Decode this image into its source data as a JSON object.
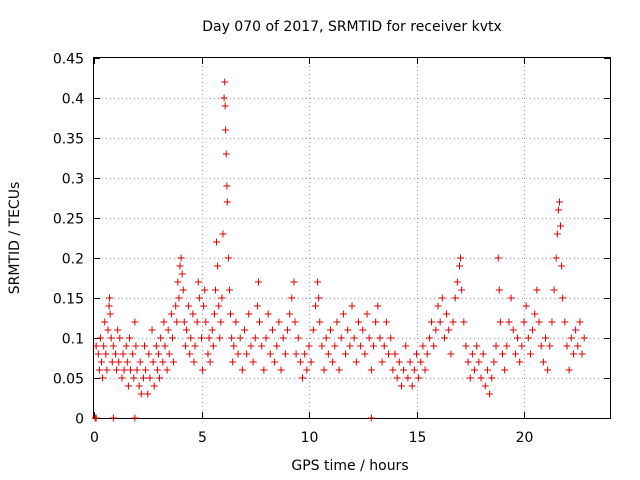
{
  "chart_data": {
    "type": "scatter",
    "title": "Day 070 of 2017, SRMTID for receiver kvtx",
    "xlabel": "GPS time / hours",
    "ylabel": "SRMTID / TECUs",
    "xlim": [
      0,
      24
    ],
    "ylim": [
      0,
      0.45
    ],
    "xticks": [
      0,
      5,
      10,
      15,
      20
    ],
    "xtick_labels": [
      "0",
      "5",
      "10",
      "15",
      "20"
    ],
    "yticks": [
      0,
      0.05,
      0.1,
      0.15,
      0.2,
      0.25,
      0.3,
      0.35,
      0.4,
      0.45
    ],
    "ytick_labels": [
      "0",
      "0.05",
      "0.1",
      "0.15",
      "0.2",
      "0.25",
      "0.3",
      "0.35",
      "0.4",
      "0.45"
    ],
    "grid": true,
    "marker": "+",
    "color": "#e00000",
    "series": [
      {
        "name": "SRMTID",
        "points": [
          [
            0.05,
            0.0
          ],
          [
            0.1,
            0.0
          ],
          [
            0.9,
            0.0
          ],
          [
            1.9,
            0.0
          ],
          [
            12.9,
            0.0
          ],
          [
            0.1,
            0.09
          ],
          [
            0.2,
            0.08
          ],
          [
            0.25,
            0.06
          ],
          [
            0.3,
            0.1
          ],
          [
            0.35,
            0.07
          ],
          [
            0.4,
            0.05
          ],
          [
            0.45,
            0.09
          ],
          [
            0.5,
            0.12
          ],
          [
            0.55,
            0.08
          ],
          [
            0.6,
            0.06
          ],
          [
            0.65,
            0.11
          ],
          [
            0.7,
            0.14
          ],
          [
            0.72,
            0.15
          ],
          [
            0.75,
            0.13
          ],
          [
            0.8,
            0.1
          ],
          [
            0.85,
            0.07
          ],
          [
            0.9,
            0.09
          ],
          [
            1.0,
            0.08
          ],
          [
            1.05,
            0.06
          ],
          [
            1.1,
            0.11
          ],
          [
            1.15,
            0.07
          ],
          [
            1.2,
            0.1
          ],
          [
            1.3,
            0.05
          ],
          [
            1.35,
            0.08
          ],
          [
            1.4,
            0.06
          ],
          [
            1.5,
            0.09
          ],
          [
            1.55,
            0.07
          ],
          [
            1.6,
            0.04
          ],
          [
            1.65,
            0.1
          ],
          [
            1.7,
            0.06
          ],
          [
            1.8,
            0.08
          ],
          [
            1.85,
            0.05
          ],
          [
            1.9,
            0.12
          ],
          [
            1.95,
            0.09
          ],
          [
            2.0,
            0.06
          ],
          [
            2.1,
            0.04
          ],
          [
            2.15,
            0.07
          ],
          [
            2.2,
            0.03
          ],
          [
            2.3,
            0.05
          ],
          [
            2.35,
            0.09
          ],
          [
            2.4,
            0.06
          ],
          [
            2.5,
            0.03
          ],
          [
            2.55,
            0.08
          ],
          [
            2.6,
            0.05
          ],
          [
            2.7,
            0.11
          ],
          [
            2.75,
            0.07
          ],
          [
            2.8,
            0.04
          ],
          [
            2.9,
            0.09
          ],
          [
            2.95,
            0.06
          ],
          [
            3.0,
            0.08
          ],
          [
            3.05,
            0.05
          ],
          [
            3.1,
            0.1
          ],
          [
            3.2,
            0.07
          ],
          [
            3.25,
            0.12
          ],
          [
            3.3,
            0.09
          ],
          [
            3.4,
            0.06
          ],
          [
            3.45,
            0.11
          ],
          [
            3.5,
            0.08
          ],
          [
            3.6,
            0.13
          ],
          [
            3.65,
            0.1
          ],
          [
            3.7,
            0.07
          ],
          [
            3.8,
            0.14
          ],
          [
            3.85,
            0.12
          ],
          [
            3.9,
            0.17
          ],
          [
            3.95,
            0.15
          ],
          [
            4.0,
            0.19
          ],
          [
            4.05,
            0.2
          ],
          [
            4.1,
            0.18
          ],
          [
            4.15,
            0.16
          ],
          [
            4.2,
            0.12
          ],
          [
            4.25,
            0.09
          ],
          [
            4.3,
            0.11
          ],
          [
            4.4,
            0.14
          ],
          [
            4.45,
            0.08
          ],
          [
            4.5,
            0.1
          ],
          [
            4.6,
            0.13
          ],
          [
            4.65,
            0.07
          ],
          [
            4.7,
            0.09
          ],
          [
            4.8,
            0.12
          ],
          [
            4.85,
            0.17
          ],
          [
            4.9,
            0.15
          ],
          [
            5.0,
            0.1
          ],
          [
            5.05,
            0.06
          ],
          [
            5.1,
            0.14
          ],
          [
            5.15,
            0.16
          ],
          [
            5.2,
            0.12
          ],
          [
            5.3,
            0.08
          ],
          [
            5.35,
            0.1
          ],
          [
            5.4,
            0.07
          ],
          [
            5.5,
            0.11
          ],
          [
            5.55,
            0.09
          ],
          [
            5.6,
            0.13
          ],
          [
            5.65,
            0.16
          ],
          [
            5.7,
            0.22
          ],
          [
            5.75,
            0.19
          ],
          [
            5.8,
            0.14
          ],
          [
            5.85,
            0.1
          ],
          [
            5.9,
            0.12
          ],
          [
            5.95,
            0.15
          ],
          [
            6.0,
            0.23
          ],
          [
            6.05,
            0.4
          ],
          [
            6.08,
            0.42
          ],
          [
            6.1,
            0.39
          ],
          [
            6.12,
            0.36
          ],
          [
            6.15,
            0.33
          ],
          [
            6.18,
            0.29
          ],
          [
            6.2,
            0.27
          ],
          [
            6.25,
            0.2
          ],
          [
            6.3,
            0.16
          ],
          [
            6.35,
            0.13
          ],
          [
            6.4,
            0.1
          ],
          [
            6.45,
            0.07
          ],
          [
            6.5,
            0.09
          ],
          [
            6.6,
            0.12
          ],
          [
            6.7,
            0.08
          ],
          [
            6.8,
            0.1
          ],
          [
            6.9,
            0.06
          ],
          [
            7.0,
            0.11
          ],
          [
            7.1,
            0.08
          ],
          [
            7.2,
            0.13
          ],
          [
            7.3,
            0.09
          ],
          [
            7.4,
            0.07
          ],
          [
            7.5,
            0.1
          ],
          [
            7.6,
            0.14
          ],
          [
            7.65,
            0.17
          ],
          [
            7.7,
            0.12
          ],
          [
            7.8,
            0.09
          ],
          [
            7.9,
            0.06
          ],
          [
            8.0,
            0.1
          ],
          [
            8.1,
            0.13
          ],
          [
            8.2,
            0.08
          ],
          [
            8.3,
            0.11
          ],
          [
            8.4,
            0.07
          ],
          [
            8.5,
            0.09
          ],
          [
            8.6,
            0.12
          ],
          [
            8.7,
            0.06
          ],
          [
            8.8,
            0.1
          ],
          [
            8.9,
            0.08
          ],
          [
            9.0,
            0.11
          ],
          [
            9.1,
            0.13
          ],
          [
            9.2,
            0.15
          ],
          [
            9.3,
            0.17
          ],
          [
            9.35,
            0.12
          ],
          [
            9.4,
            0.08
          ],
          [
            9.5,
            0.1
          ],
          [
            9.6,
            0.07
          ],
          [
            9.7,
            0.05
          ],
          [
            9.8,
            0.08
          ],
          [
            9.9,
            0.06
          ],
          [
            10.0,
            0.09
          ],
          [
            10.1,
            0.07
          ],
          [
            10.2,
            0.11
          ],
          [
            10.3,
            0.14
          ],
          [
            10.4,
            0.17
          ],
          [
            10.45,
            0.15
          ],
          [
            10.5,
            0.12
          ],
          [
            10.6,
            0.09
          ],
          [
            10.7,
            0.06
          ],
          [
            10.8,
            0.1
          ],
          [
            10.9,
            0.08
          ],
          [
            11.0,
            0.11
          ],
          [
            11.1,
            0.07
          ],
          [
            11.2,
            0.09
          ],
          [
            11.3,
            0.12
          ],
          [
            11.4,
            0.06
          ],
          [
            11.5,
            0.1
          ],
          [
            11.6,
            0.13
          ],
          [
            11.7,
            0.08
          ],
          [
            11.8,
            0.11
          ],
          [
            11.9,
            0.09
          ],
          [
            12.0,
            0.14
          ],
          [
            12.1,
            0.1
          ],
          [
            12.2,
            0.07
          ],
          [
            12.3,
            0.12
          ],
          [
            12.4,
            0.09
          ],
          [
            12.5,
            0.11
          ],
          [
            12.6,
            0.08
          ],
          [
            12.7,
            0.13
          ],
          [
            12.8,
            0.1
          ],
          [
            12.9,
            0.06
          ],
          [
            13.0,
            0.09
          ],
          [
            13.1,
            0.12
          ],
          [
            13.2,
            0.14
          ],
          [
            13.3,
            0.1
          ],
          [
            13.4,
            0.07
          ],
          [
            13.5,
            0.09
          ],
          [
            13.6,
            0.12
          ],
          [
            13.7,
            0.08
          ],
          [
            13.8,
            0.1
          ],
          [
            13.9,
            0.06
          ],
          [
            14.0,
            0.08
          ],
          [
            14.1,
            0.05
          ],
          [
            14.2,
            0.07
          ],
          [
            14.3,
            0.04
          ],
          [
            14.4,
            0.06
          ],
          [
            14.5,
            0.09
          ],
          [
            14.6,
            0.05
          ],
          [
            14.7,
            0.07
          ],
          [
            14.8,
            0.04
          ],
          [
            14.9,
            0.06
          ],
          [
            15.0,
            0.08
          ],
          [
            15.1,
            0.05
          ],
          [
            15.2,
            0.07
          ],
          [
            15.3,
            0.09
          ],
          [
            15.4,
            0.06
          ],
          [
            15.5,
            0.08
          ],
          [
            15.6,
            0.1
          ],
          [
            15.7,
            0.12
          ],
          [
            15.8,
            0.09
          ],
          [
            15.9,
            0.11
          ],
          [
            16.0,
            0.14
          ],
          [
            16.1,
            0.12
          ],
          [
            16.2,
            0.15
          ],
          [
            16.3,
            0.1
          ],
          [
            16.4,
            0.13
          ],
          [
            16.5,
            0.11
          ],
          [
            16.6,
            0.08
          ],
          [
            16.7,
            0.12
          ],
          [
            16.8,
            0.15
          ],
          [
            16.9,
            0.17
          ],
          [
            17.0,
            0.19
          ],
          [
            17.05,
            0.2
          ],
          [
            17.1,
            0.16
          ],
          [
            17.2,
            0.12
          ],
          [
            17.3,
            0.09
          ],
          [
            17.4,
            0.07
          ],
          [
            17.5,
            0.05
          ],
          [
            17.6,
            0.08
          ],
          [
            17.7,
            0.06
          ],
          [
            17.8,
            0.09
          ],
          [
            17.9,
            0.07
          ],
          [
            18.0,
            0.05
          ],
          [
            18.1,
            0.08
          ],
          [
            18.2,
            0.04
          ],
          [
            18.3,
            0.06
          ],
          [
            18.4,
            0.03
          ],
          [
            18.5,
            0.05
          ],
          [
            18.6,
            0.07
          ],
          [
            18.7,
            0.09
          ],
          [
            18.8,
            0.2
          ],
          [
            18.85,
            0.16
          ],
          [
            18.9,
            0.12
          ],
          [
            19.0,
            0.08
          ],
          [
            19.1,
            0.06
          ],
          [
            19.2,
            0.09
          ],
          [
            19.3,
            0.12
          ],
          [
            19.4,
            0.15
          ],
          [
            19.5,
            0.11
          ],
          [
            19.6,
            0.08
          ],
          [
            19.7,
            0.1
          ],
          [
            19.8,
            0.07
          ],
          [
            19.9,
            0.09
          ],
          [
            20.0,
            0.12
          ],
          [
            20.1,
            0.14
          ],
          [
            20.2,
            0.1
          ],
          [
            20.3,
            0.08
          ],
          [
            20.4,
            0.11
          ],
          [
            20.5,
            0.13
          ],
          [
            20.6,
            0.16
          ],
          [
            20.7,
            0.12
          ],
          [
            20.8,
            0.09
          ],
          [
            20.9,
            0.07
          ],
          [
            21.0,
            0.1
          ],
          [
            21.1,
            0.06
          ],
          [
            21.2,
            0.09
          ],
          [
            21.3,
            0.12
          ],
          [
            21.4,
            0.16
          ],
          [
            21.5,
            0.2
          ],
          [
            21.55,
            0.23
          ],
          [
            21.6,
            0.26
          ],
          [
            21.65,
            0.27
          ],
          [
            21.7,
            0.24
          ],
          [
            21.75,
            0.19
          ],
          [
            21.8,
            0.15
          ],
          [
            21.9,
            0.12
          ],
          [
            22.0,
            0.09
          ],
          [
            22.1,
            0.06
          ],
          [
            22.2,
            0.1
          ],
          [
            22.3,
            0.08
          ],
          [
            22.4,
            0.11
          ],
          [
            22.5,
            0.09
          ],
          [
            22.6,
            0.12
          ],
          [
            22.7,
            0.08
          ],
          [
            22.8,
            0.1
          ]
        ]
      }
    ]
  }
}
